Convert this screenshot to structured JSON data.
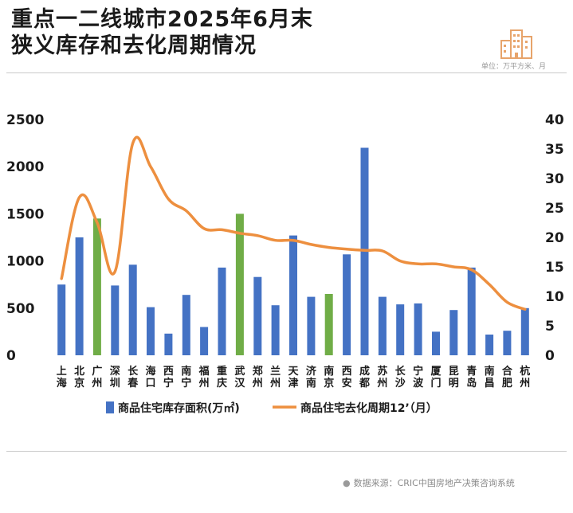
{
  "title": {
    "line1": "重点一二线城市2025年6月末",
    "line2": "狭义库存和去化周期情况"
  },
  "unit": "单位：万平方米、月",
  "source": "数据来源：CRIC中国房地产决策咨询系统",
  "colors": {
    "bar": "#4472c4",
    "bar_highlight": "#70ad47",
    "line": "#ed8f3f",
    "logo": "#e7a46b"
  },
  "chart_data": {
    "type": "bar",
    "categories": [
      "上海",
      "北京",
      "广州",
      "深圳",
      "长春",
      "海口",
      "西宁",
      "南宁",
      "福州",
      "重庆",
      "武汉",
      "郑州",
      "兰州",
      "天津",
      "济南",
      "南京",
      "西安",
      "成都",
      "苏州",
      "长沙",
      "宁波",
      "厦门",
      "昆明",
      "青岛",
      "南昌",
      "合肥",
      "杭州"
    ],
    "highlighted": [
      "广州",
      "武汉",
      "南京"
    ],
    "series": [
      {
        "name": "商品住宅库存面积(万㎡)",
        "type": "bar",
        "axis": "left",
        "values": [
          750,
          1250,
          1450,
          740,
          960,
          510,
          230,
          640,
          300,
          930,
          1500,
          830,
          530,
          1270,
          620,
          650,
          1070,
          2200,
          620,
          540,
          550,
          250,
          480,
          930,
          220,
          260,
          500
        ]
      },
      {
        "name": "商品住宅去化周期12’（月）",
        "type": "line",
        "axis": "right",
        "values": [
          13,
          26.8,
          22.5,
          14.2,
          36,
          32,
          26.5,
          24.5,
          21.5,
          21.3,
          20.7,
          20.3,
          19.5,
          19.5,
          18.8,
          18.3,
          18.0,
          17.8,
          17.7,
          16,
          15.5,
          15.5,
          15,
          14.5,
          12,
          9,
          7.8
        ]
      }
    ],
    "y_left": {
      "min": 0,
      "max": 2500,
      "ticks": [
        0,
        500,
        1000,
        1500,
        2000,
        2500
      ]
    },
    "y_right": {
      "min": 0,
      "max": 40,
      "ticks": [
        0,
        5,
        10,
        15,
        20,
        25,
        30,
        35,
        40
      ]
    },
    "grid": false,
    "legend": "bottom"
  }
}
